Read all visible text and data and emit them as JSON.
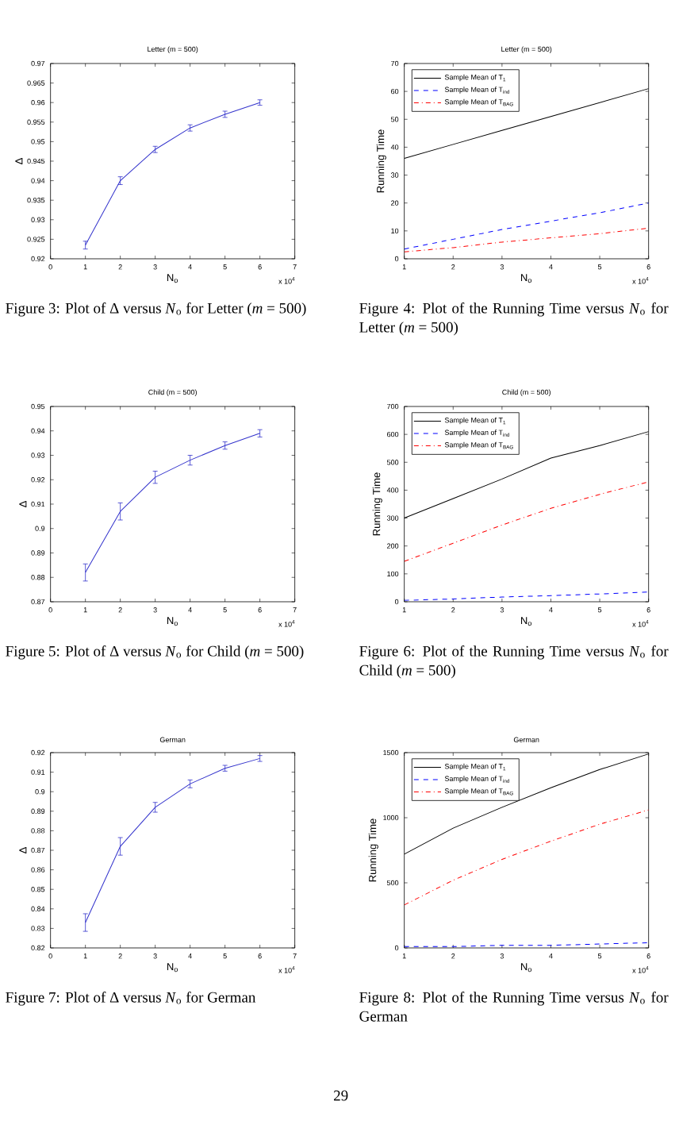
{
  "chart_data": [
    {
      "type": "line",
      "title": "Letter (m = 500)",
      "xlabel": "N$_{o}$",
      "ylabel": "Δ",
      "x": [
        1,
        2,
        3,
        4,
        5,
        6
      ],
      "values": [
        0.9235,
        0.94,
        0.948,
        0.9535,
        0.957,
        0.96
      ],
      "errors": [
        0.001,
        0.001,
        0.0008,
        0.0008,
        0.0008,
        0.0007
      ],
      "color": "#3333cc",
      "xlim": [
        0,
        7
      ],
      "xticks": [
        0,
        1,
        2,
        3,
        4,
        5,
        6,
        7
      ],
      "ylim": [
        0.92,
        0.97
      ],
      "yticks": [
        0.92,
        0.925,
        0.93,
        0.935,
        0.94,
        0.945,
        0.95,
        0.955,
        0.96,
        0.965,
        0.97
      ],
      "annotations": [
        "x 10$^{4}$",
        "Figure 3: Plot of Δ versus *N*$_{o}$ for Letter (*m* = 500)"
      ]
    },
    {
      "type": "line",
      "title": "Letter (m = 500)",
      "xlabel": "N$_{o}$",
      "ylabel": "Running Time",
      "x": [
        1,
        2,
        3,
        4,
        5,
        6
      ],
      "legend": "top left",
      "series": [
        {
          "name": "Sample Mean of T$_{1}$",
          "color": "#000000",
          "line_style": "solid",
          "values": [
            36,
            41,
            46,
            51,
            56,
            61
          ]
        },
        {
          "name": "Sample Mean of T$_{ind}$",
          "color": "#0000ff",
          "line_style": "dashed",
          "values": [
            3.5,
            7,
            10.5,
            13.5,
            16.5,
            20
          ]
        },
        {
          "name": "Sample Mean of T$_{BAG}$",
          "color": "#ff0000",
          "line_style": "dashdot",
          "values": [
            2.5,
            4,
            6,
            7.5,
            9,
            11
          ]
        }
      ],
      "xlim": [
        1,
        6
      ],
      "xticks": [
        1,
        2,
        3,
        4,
        5,
        6
      ],
      "ylim": [
        0,
        70
      ],
      "yticks": [
        0,
        10,
        20,
        30,
        40,
        50,
        60,
        70
      ],
      "annotations": [
        "x 10$^{4}$",
        "Figure 4: Plot of the Running Time versus *N*$_{o}$ for Letter (*m* = 500)"
      ]
    },
    {
      "type": "line",
      "title": "Child (m = 500)",
      "xlabel": "N$_{o}$",
      "ylabel": "Δ",
      "x": [
        1,
        2,
        3,
        4,
        5,
        6
      ],
      "values": [
        0.882,
        0.907,
        0.921,
        0.928,
        0.934,
        0.939
      ],
      "errors": [
        0.0035,
        0.0035,
        0.0025,
        0.002,
        0.0015,
        0.0015
      ],
      "color": "#3333cc",
      "xlim": [
        0,
        7
      ],
      "xticks": [
        0,
        1,
        2,
        3,
        4,
        5,
        6,
        7
      ],
      "ylim": [
        0.87,
        0.95
      ],
      "yticks": [
        0.87,
        0.88,
        0.89,
        0.9,
        0.91,
        0.92,
        0.93,
        0.94,
        0.95
      ],
      "annotations": [
        "x 10$^{4}$",
        "Figure 5: Plot of Δ versus *N*$_{o}$ for Child (*m* = 500)"
      ]
    },
    {
      "type": "line",
      "title": "Child (m = 500)",
      "xlabel": "N$_{o}$",
      "ylabel": "Running Time",
      "x": [
        1,
        2,
        3,
        4,
        5,
        6
      ],
      "legend": "top left",
      "series": [
        {
          "name": "Sample Mean of T$_{1}$",
          "color": "#000000",
          "line_style": "solid",
          "values": [
            300,
            370,
            440,
            515,
            560,
            610
          ]
        },
        {
          "name": "Sample Mean of T$_{ind}$",
          "color": "#0000ff",
          "line_style": "dashed",
          "values": [
            5,
            10,
            17,
            22,
            28,
            35
          ]
        },
        {
          "name": "Sample Mean of T$_{BAG}$",
          "color": "#ff0000",
          "line_style": "dashdot",
          "values": [
            145,
            210,
            275,
            335,
            385,
            430
          ]
        }
      ],
      "xlim": [
        1,
        6
      ],
      "xticks": [
        1,
        2,
        3,
        4,
        5,
        6
      ],
      "ylim": [
        0,
        700
      ],
      "yticks": [
        0,
        100,
        200,
        300,
        400,
        500,
        600,
        700
      ],
      "annotations": [
        "x 10$^{4}$",
        "Figure 6: Plot of the Running Time versus *N*$_{o}$ for Child (*m* = 500)"
      ]
    },
    {
      "type": "line",
      "title": "German",
      "xlabel": "N$_{o}$",
      "ylabel": "Δ",
      "x": [
        1,
        2,
        3,
        4,
        5,
        6
      ],
      "values": [
        0.833,
        0.872,
        0.892,
        0.904,
        0.912,
        0.917
      ],
      "errors": [
        0.0045,
        0.0045,
        0.0025,
        0.002,
        0.0015,
        0.0015
      ],
      "color": "#3333cc",
      "xlim": [
        0,
        7
      ],
      "xticks": [
        0,
        1,
        2,
        3,
        4,
        5,
        6,
        7
      ],
      "ylim": [
        0.82,
        0.92
      ],
      "yticks": [
        0.82,
        0.83,
        0.84,
        0.85,
        0.86,
        0.87,
        0.88,
        0.89,
        0.9,
        0.91,
        0.92
      ],
      "annotations": [
        "x 10$^{4}$",
        "Figure 7: Plot of Δ versus *N*$_{o}$ for German"
      ]
    },
    {
      "type": "line",
      "title": "German",
      "xlabel": "N$_{o}$",
      "ylabel": "Running Time",
      "x": [
        1,
        2,
        3,
        4,
        5,
        6
      ],
      "legend": "top left",
      "series": [
        {
          "name": "Sample Mean of T$_{1}$",
          "color": "#000000",
          "line_style": "solid",
          "values": [
            720,
            920,
            1080,
            1230,
            1370,
            1490
          ]
        },
        {
          "name": "Sample Mean of T$_{ind}$",
          "color": "#0000ff",
          "line_style": "dashed",
          "values": [
            10,
            10,
            20,
            20,
            30,
            40
          ]
        },
        {
          "name": "Sample Mean of T$_{BAG}$",
          "color": "#ff0000",
          "line_style": "dashdot",
          "values": [
            330,
            520,
            680,
            820,
            950,
            1060
          ]
        }
      ],
      "xlim": [
        1,
        6
      ],
      "xticks": [
        1,
        2,
        3,
        4,
        5,
        6
      ],
      "ylim": [
        0,
        1500
      ],
      "yticks": [
        0,
        500,
        1000,
        1500
      ],
      "annotations": [
        "x 10$^{4}$",
        "Figure 8: Plot of the Running Time versus *N*$_{o}$ for German",
        "29"
      ]
    }
  ]
}
